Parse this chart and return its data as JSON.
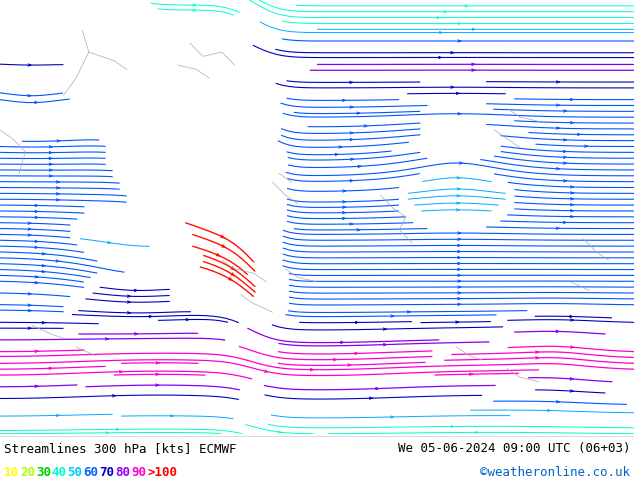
{
  "title_left": "Streamlines 300 hPa [kts] ECMWF",
  "title_right": "We 05-06-2024 09:00 UTC (06+03)",
  "copyright": "©weatheronline.co.uk",
  "legend_values": [
    "10",
    "20",
    "30",
    "40",
    "50",
    "60",
    "70",
    "80",
    "90",
    ">100"
  ],
  "legend_colors": [
    "#ffff00",
    "#aaff00",
    "#00cc00",
    "#00ffcc",
    "#00ccff",
    "#0066ff",
    "#0000cc",
    "#9900ff",
    "#ff00cc",
    "#ff0000"
  ],
  "background_color": "#ffffff",
  "map_bg": "#ffffff",
  "fig_width": 6.34,
  "fig_height": 4.9,
  "dpi": 100,
  "bottom_text_color": "#000000",
  "legend_fontsize": 9,
  "title_fontsize": 9,
  "copyright_color": "#0066cc",
  "speed_colors": [
    [
      0,
      "#ffff00"
    ],
    [
      10,
      "#ffff00"
    ],
    [
      20,
      "#aaff00"
    ],
    [
      30,
      "#00cc00"
    ],
    [
      40,
      "#00ffcc"
    ],
    [
      50,
      "#00ccff"
    ],
    [
      60,
      "#0066ff"
    ],
    [
      70,
      "#0000cc"
    ],
    [
      80,
      "#9900ff"
    ],
    [
      90,
      "#ff00cc"
    ],
    [
      100,
      "#ff0000"
    ]
  ]
}
